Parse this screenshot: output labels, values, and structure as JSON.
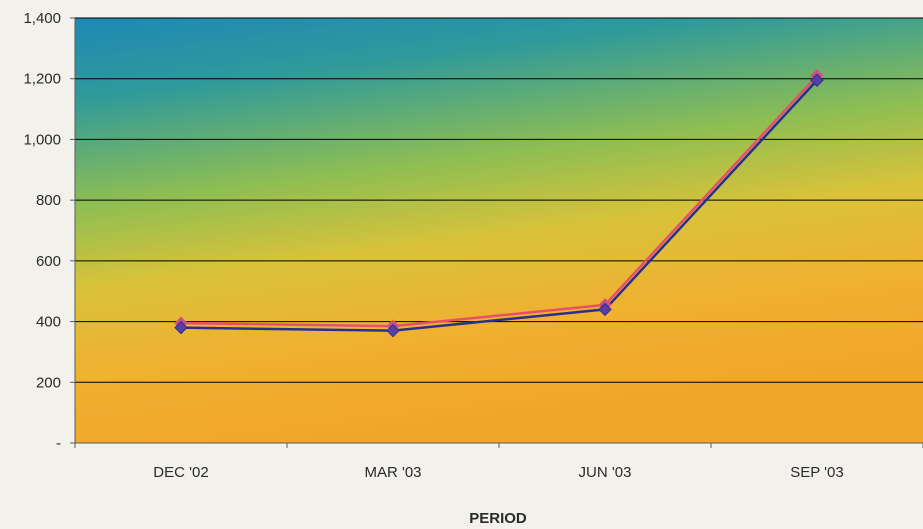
{
  "chart_data": {
    "type": "line",
    "title": "",
    "xlabel": "PERIOD",
    "ylabel": "",
    "categories": [
      "DEC '02",
      "MAR '03",
      "JUN '03",
      "SEP '03"
    ],
    "y_tick_labels": [
      "-",
      "200",
      "400",
      "600",
      "800",
      "1,000",
      "1,200",
      "1,400"
    ],
    "ylim": [
      0,
      1400
    ],
    "grid": true,
    "legend": "none",
    "series": [
      {
        "values": [
          395,
          385,
          455,
          1210
        ],
        "color": "#e8506a"
      },
      {
        "values": [
          380,
          370,
          440,
          1195
        ],
        "color": "#2a2f8f"
      }
    ],
    "colors": {
      "bg_top": "#1f88b6",
      "bg_mid": "#b8c23a",
      "bg_bottom": "#f0a82a",
      "grid": "#000000",
      "marker": "#5a3fa3"
    }
  }
}
